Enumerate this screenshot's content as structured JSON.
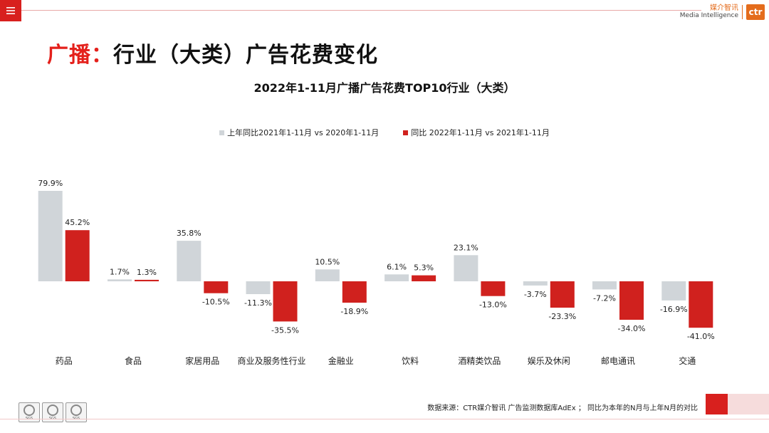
{
  "header": {
    "menu_icon": "hamburger-icon",
    "logo_cn": "媒介智讯",
    "logo_en": "Media Intelligence",
    "logo_mark": "ctr",
    "brand_color": "#e46c1c"
  },
  "page": {
    "title_accent": "广播：",
    "title_rest": "行业（大类）广告花费变化",
    "accent_color": "#e4201b"
  },
  "chart_data": {
    "type": "bar",
    "title": "2022年1-11月广播广告花费TOP10行业（大类）",
    "xlabel": "",
    "ylabel": "",
    "grid": false,
    "legend_position": "top",
    "categories": [
      "药品",
      "食品",
      "家居用品",
      "商业及服务性行业",
      "金融业",
      "饮料",
      "酒精类饮品",
      "娱乐及休闲",
      "邮电通讯",
      "交通"
    ],
    "series": [
      {
        "name": "上年同比2021年1-11月  vs  2020年1-11月",
        "color": "#d0d5d9",
        "values": [
          79.9,
          1.7,
          35.8,
          -11.3,
          10.5,
          6.1,
          23.1,
          -3.7,
          -7.2,
          -16.9
        ],
        "labels": [
          "79.9%",
          "1.7%",
          "35.8%",
          "-11.3%",
          "10.5%",
          "6.1%",
          "23.1%",
          "-3.7%",
          "-7.2%",
          "-16.9%"
        ]
      },
      {
        "name": "同比 2022年1-11月  vs  2021年1-11月",
        "color": "#d0211e",
        "values": [
          45.2,
          1.3,
          -10.5,
          -35.5,
          -18.9,
          5.3,
          -13.0,
          -23.3,
          -34.0,
          -41.0
        ],
        "labels": [
          "45.2%",
          "1.3%",
          "-10.5%",
          "-35.5%",
          "-18.9%",
          "5.3%",
          "-13.0%",
          "-23.3%",
          "-34.0%",
          "-41.0%"
        ]
      }
    ],
    "ylim": [
      -45,
      85
    ]
  },
  "footer": {
    "source": "数据来源：CTR媒介智讯 广告监测数据库AdEx ；  同比为本年的N月与上年N月的对比",
    "badge_text": "SGS"
  }
}
